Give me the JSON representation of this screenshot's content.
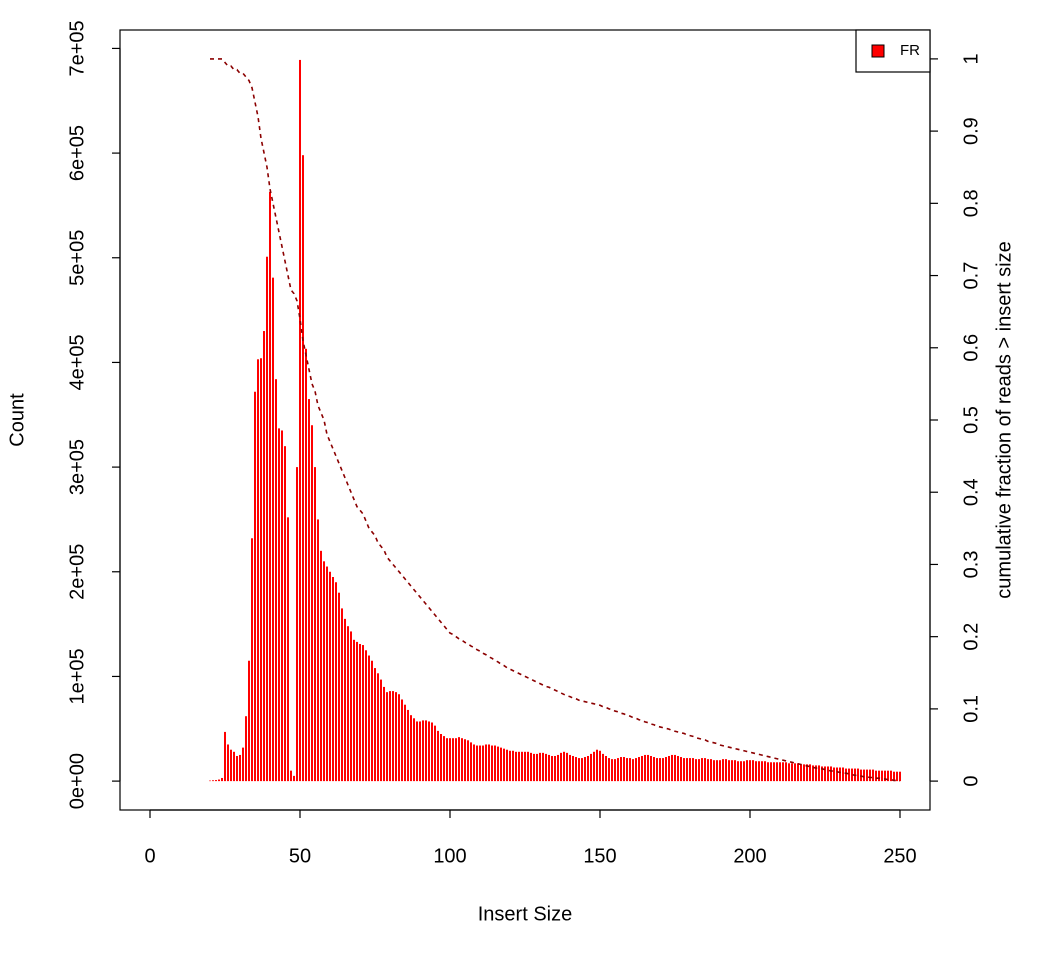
{
  "chart_data": {
    "type": "bar",
    "xlabel": "Insert Size",
    "ylabel": "Count",
    "y2label": "cumulative fraction of reads > insert size",
    "x": [
      20,
      21,
      22,
      23,
      24,
      25,
      26,
      27,
      28,
      29,
      30,
      31,
      32,
      33,
      34,
      35,
      36,
      37,
      38,
      39,
      40,
      41,
      42,
      43,
      44,
      45,
      46,
      47,
      48,
      49,
      50,
      51,
      52,
      53,
      54,
      55,
      56,
      57,
      58,
      59,
      60,
      61,
      62,
      63,
      64,
      65,
      66,
      67,
      68,
      69,
      70,
      71,
      72,
      73,
      74,
      75,
      76,
      77,
      78,
      79,
      80,
      81,
      82,
      83,
      84,
      85,
      86,
      87,
      88,
      89,
      90,
      91,
      92,
      93,
      94,
      95,
      96,
      97,
      98,
      99,
      100,
      101,
      102,
      103,
      104,
      105,
      106,
      107,
      108,
      109,
      110,
      111,
      112,
      113,
      114,
      115,
      116,
      117,
      118,
      119,
      120,
      121,
      122,
      123,
      124,
      125,
      126,
      127,
      128,
      129,
      130,
      131,
      132,
      133,
      134,
      135,
      136,
      137,
      138,
      139,
      140,
      141,
      142,
      143,
      144,
      145,
      146,
      147,
      148,
      149,
      150,
      151,
      152,
      153,
      154,
      155,
      156,
      157,
      158,
      159,
      160,
      161,
      162,
      163,
      164,
      165,
      166,
      167,
      168,
      169,
      170,
      171,
      172,
      173,
      174,
      175,
      176,
      177,
      178,
      179,
      180,
      181,
      182,
      183,
      184,
      185,
      186,
      187,
      188,
      189,
      190,
      191,
      192,
      193,
      194,
      195,
      196,
      197,
      198,
      199,
      200,
      201,
      202,
      203,
      204,
      205,
      206,
      207,
      208,
      209,
      210,
      211,
      212,
      213,
      214,
      215,
      216,
      217,
      218,
      219,
      220,
      221,
      222,
      223,
      224,
      225,
      226,
      227,
      228,
      229,
      230,
      231,
      232,
      233,
      234,
      235,
      236,
      237,
      238,
      239,
      240,
      241,
      242,
      243,
      244,
      245,
      246,
      247,
      248,
      249,
      250
    ],
    "series": [
      {
        "name": "FR",
        "color": "#ff0000",
        "values": [
          500,
          800,
          1000,
          1500,
          3000,
          47000,
          35000,
          30000,
          28000,
          24000,
          25000,
          32000,
          62000,
          115000,
          232000,
          372000,
          403000,
          404000,
          430000,
          501000,
          563000,
          481000,
          384000,
          337000,
          335000,
          320000,
          252000,
          10000,
          5000,
          300000,
          689000,
          598000,
          413000,
          365000,
          340000,
          300000,
          250000,
          220000,
          210000,
          205000,
          200000,
          195000,
          190000,
          180000,
          165000,
          155000,
          148000,
          143000,
          135000,
          133000,
          131000,
          130000,
          125000,
          120000,
          115000,
          108000,
          103000,
          97000,
          90000,
          85000,
          86000,
          86000,
          85000,
          83000,
          78000,
          73000,
          68000,
          63000,
          60000,
          57000,
          57000,
          58000,
          58000,
          57000,
          56000,
          53000,
          48000,
          45000,
          43000,
          41000,
          41000,
          41000,
          41000,
          42000,
          41000,
          40000,
          39000,
          37000,
          35000,
          34000,
          34000,
          34000,
          35000,
          35000,
          34000,
          34000,
          33000,
          32000,
          31000,
          30000,
          29000,
          29000,
          28000,
          28000,
          28000,
          28000,
          28000,
          27000,
          26000,
          26000,
          27000,
          27000,
          26000,
          25000,
          24000,
          24000,
          25000,
          27000,
          28000,
          27000,
          25000,
          24000,
          23000,
          22000,
          22000,
          23000,
          24000,
          26000,
          28000,
          30000,
          29000,
          26000,
          24000,
          22000,
          21000,
          21000,
          22000,
          23000,
          23000,
          22000,
          22000,
          21000,
          22000,
          23000,
          24000,
          25000,
          25000,
          24000,
          23000,
          22000,
          22000,
          22000,
          23000,
          24000,
          25000,
          25000,
          24000,
          23000,
          22000,
          22000,
          22000,
          22000,
          21000,
          21000,
          22000,
          22000,
          21000,
          21000,
          20000,
          20000,
          20000,
          21000,
          21000,
          20000,
          20000,
          20000,
          19000,
          19000,
          19000,
          20000,
          20000,
          20000,
          19000,
          19000,
          19000,
          19000,
          18000,
          18000,
          18000,
          18000,
          18000,
          18000,
          18000,
          17000,
          17000,
          17000,
          17000,
          16000,
          16000,
          16000,
          16000,
          15000,
          15000,
          15000,
          14000,
          14000,
          14000,
          14000,
          13000,
          13000,
          13000,
          13000,
          12000,
          12000,
          12000,
          12000,
          12000,
          11000,
          11000,
          11000,
          11000,
          11000,
          10000,
          10000,
          10000,
          10000,
          10000,
          10000,
          9000,
          9000,
          9000
        ]
      },
      {
        "type": "line",
        "axis": "y2",
        "style": "dashed",
        "color": "#8b0000",
        "values": [
          1,
          1,
          1,
          1,
          1,
          0.995,
          0.99,
          0.99,
          0.985,
          0.985,
          0.98,
          0.98,
          0.975,
          0.97,
          0.96,
          0.94,
          0.92,
          0.89,
          0.87,
          0.85,
          0.82,
          0.8,
          0.78,
          0.76,
          0.74,
          0.72,
          0.7,
          0.68,
          0.675,
          0.665,
          0.64,
          0.61,
          0.59,
          0.57,
          0.55,
          0.54,
          0.52,
          0.51,
          0.5,
          0.48,
          0.47,
          0.46,
          0.45,
          0.44,
          0.43,
          0.42,
          0.41,
          0.4,
          0.39,
          0.38,
          0.375,
          0.37,
          0.36,
          0.35,
          0.345,
          0.34,
          0.33,
          0.325,
          0.32,
          0.31,
          0.305,
          0.3,
          0.295,
          0.29,
          0.285,
          0.28,
          0.275,
          0.27,
          0.265,
          0.26,
          0.255,
          0.25,
          0.245,
          0.24,
          0.235,
          0.23,
          0.225,
          0.22,
          0.215,
          0.21,
          0.205,
          0.203,
          0.2,
          0.197,
          0.195,
          0.192,
          0.19,
          0.187,
          0.185,
          0.182,
          0.18,
          0.177,
          0.175,
          0.172,
          0.17,
          0.167,
          0.165,
          0.162,
          0.16,
          0.157,
          0.155,
          0.153,
          0.151,
          0.149,
          0.147,
          0.145,
          0.143,
          0.141,
          0.139,
          0.137,
          0.135,
          0.133,
          0.131,
          0.13,
          0.128,
          0.126,
          0.124,
          0.122,
          0.12,
          0.118,
          0.117,
          0.115,
          0.114,
          0.112,
          0.111,
          0.11,
          0.109,
          0.108,
          0.107,
          0.106,
          0.105,
          0.103,
          0.102,
          0.1,
          0.099,
          0.097,
          0.096,
          0.094,
          0.093,
          0.091,
          0.09,
          0.088,
          0.087,
          0.085,
          0.084,
          0.082,
          0.081,
          0.079,
          0.078,
          0.076,
          0.075,
          0.074,
          0.073,
          0.072,
          0.07,
          0.069,
          0.068,
          0.067,
          0.066,
          0.064,
          0.063,
          0.062,
          0.06,
          0.059,
          0.058,
          0.057,
          0.055,
          0.054,
          0.053,
          0.052,
          0.05,
          0.049,
          0.048,
          0.047,
          0.046,
          0.045,
          0.044,
          0.043,
          0.042,
          0.041,
          0.04,
          0.039,
          0.038,
          0.037,
          0.036,
          0.035,
          0.034,
          0.033,
          0.032,
          0.031,
          0.03,
          0.029,
          0.028,
          0.027,
          0.026,
          0.025,
          0.024,
          0.023,
          0.022,
          0.021,
          0.02,
          0.019,
          0.018,
          0.018,
          0.017,
          0.016,
          0.015,
          0.014,
          0.014,
          0.013,
          0.012,
          0.011,
          0.011,
          0.01,
          0.009,
          0.008,
          0.008,
          0.007,
          0.006,
          0.006,
          0.005,
          0.005,
          0.004,
          0.004,
          0.003,
          0.003,
          0.002,
          0.002,
          0.001,
          0.001,
          0
        ]
      }
    ],
    "xlim": [
      -10,
      260
    ],
    "xticks": [
      0,
      50,
      100,
      150,
      200,
      250
    ],
    "ylim": [
      -27600,
      717600
    ],
    "yticks": [
      {
        "value": 0,
        "label": "0e+00"
      },
      {
        "value": 100000,
        "label": "1e+05"
      },
      {
        "value": 200000,
        "label": "2e+05"
      },
      {
        "value": 300000,
        "label": "3e+05"
      },
      {
        "value": 400000,
        "label": "4e+05"
      },
      {
        "value": 500000,
        "label": "5e+05"
      },
      {
        "value": 600000,
        "label": "6e+05"
      },
      {
        "value": 700000,
        "label": "7e+05"
      }
    ],
    "y2lim": [
      -0.04,
      1.04
    ],
    "y2ticks": [
      0,
      0.1,
      0.2,
      0.3,
      0.4,
      0.5,
      0.6,
      0.7,
      0.8,
      0.9,
      1
    ],
    "grid": false,
    "legend": "topright"
  }
}
